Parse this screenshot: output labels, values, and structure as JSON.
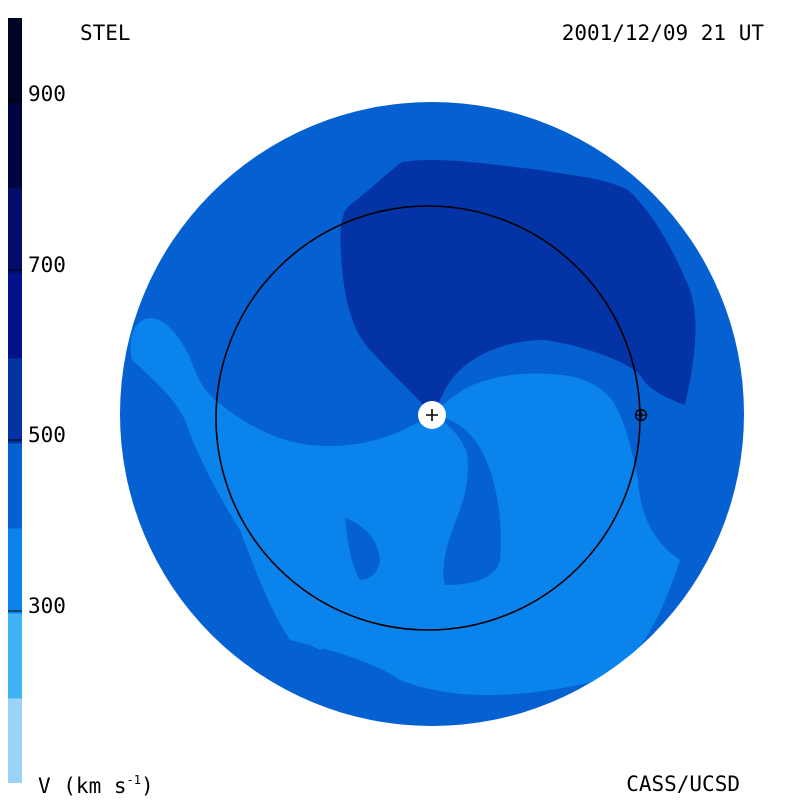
{
  "header": {
    "source": "STEL",
    "datetime": "2001/12/09 21 UT"
  },
  "footer": {
    "credit": "CASS/UCSD"
  },
  "colorbar": {
    "units_text": "V (km s",
    "units_exp": "-1",
    "units_close": ")",
    "ticks": [
      "900",
      "700",
      "500",
      "300"
    ],
    "bands": [
      {
        "color": "#99d4f7"
      },
      {
        "color": "#3fb4f4"
      },
      {
        "color": "#0a84ec"
      },
      {
        "color": "#0560d2"
      },
      {
        "color": "#0433a6"
      },
      {
        "color": "#03118d"
      },
      {
        "color": "#020c6b"
      },
      {
        "color": "#01053f"
      },
      {
        "color": "#000424"
      }
    ]
  },
  "map": {
    "colors": {
      "base": "#0560d2",
      "fast": "#0433a6",
      "slow": "#0a84ec",
      "orbit": "#000000",
      "sun": "#ffffff"
    },
    "markers": {
      "sun": "sun-plus-icon",
      "earth": "earth-circle-plus-icon"
    }
  }
}
